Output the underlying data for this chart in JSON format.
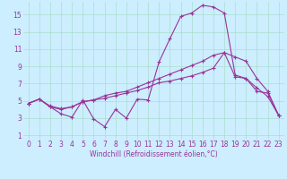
{
  "xlabel": "Windchill (Refroidissement éolien,°C)",
  "background_color": "#cceeff",
  "line_color": "#993399",
  "xlim": [
    -0.5,
    23.5
  ],
  "ylim": [
    0.5,
    16.5
  ],
  "xticks": [
    0,
    1,
    2,
    3,
    4,
    5,
    6,
    7,
    8,
    9,
    10,
    11,
    12,
    13,
    14,
    15,
    16,
    17,
    18,
    19,
    20,
    21,
    22,
    23
  ],
  "yticks": [
    1,
    3,
    5,
    7,
    9,
    11,
    13,
    15
  ],
  "grid_color": "#aaddcc",
  "series1_x": [
    0,
    1,
    2,
    3,
    4,
    5,
    6,
    7,
    8,
    9,
    10,
    11,
    12,
    13,
    14,
    15,
    16,
    17,
    18,
    19,
    20,
    21,
    22,
    23
  ],
  "series1_y": [
    4.7,
    5.2,
    4.3,
    3.5,
    3.1,
    5.1,
    2.9,
    2.0,
    4.0,
    3.0,
    5.2,
    5.1,
    9.5,
    12.2,
    14.8,
    15.2,
    16.1,
    15.9,
    15.2,
    8.0,
    7.6,
    6.1,
    5.9,
    3.3
  ],
  "series2_x": [
    0,
    1,
    2,
    3,
    4,
    5,
    6,
    7,
    8,
    9,
    10,
    11,
    12,
    13,
    14,
    15,
    16,
    17,
    18,
    19,
    20,
    21,
    22,
    23
  ],
  "series2_y": [
    4.7,
    5.2,
    4.3,
    4.0,
    4.3,
    4.9,
    5.1,
    5.3,
    5.6,
    5.9,
    6.2,
    6.6,
    7.1,
    7.3,
    7.6,
    7.9,
    8.3,
    8.8,
    10.6,
    7.8,
    7.6,
    6.5,
    5.5,
    3.3
  ],
  "series3_x": [
    0,
    1,
    2,
    3,
    4,
    5,
    6,
    7,
    8,
    9,
    10,
    11,
    12,
    13,
    14,
    15,
    16,
    17,
    18,
    19,
    20,
    21,
    22,
    23
  ],
  "series3_y": [
    4.7,
    5.2,
    4.4,
    4.1,
    4.3,
    4.9,
    5.1,
    5.6,
    5.9,
    6.1,
    6.6,
    7.1,
    7.6,
    8.1,
    8.6,
    9.1,
    9.6,
    10.3,
    10.6,
    10.1,
    9.6,
    7.6,
    6.1,
    3.3
  ],
  "tick_fontsize": 5.5,
  "xlabel_fontsize": 5.5
}
